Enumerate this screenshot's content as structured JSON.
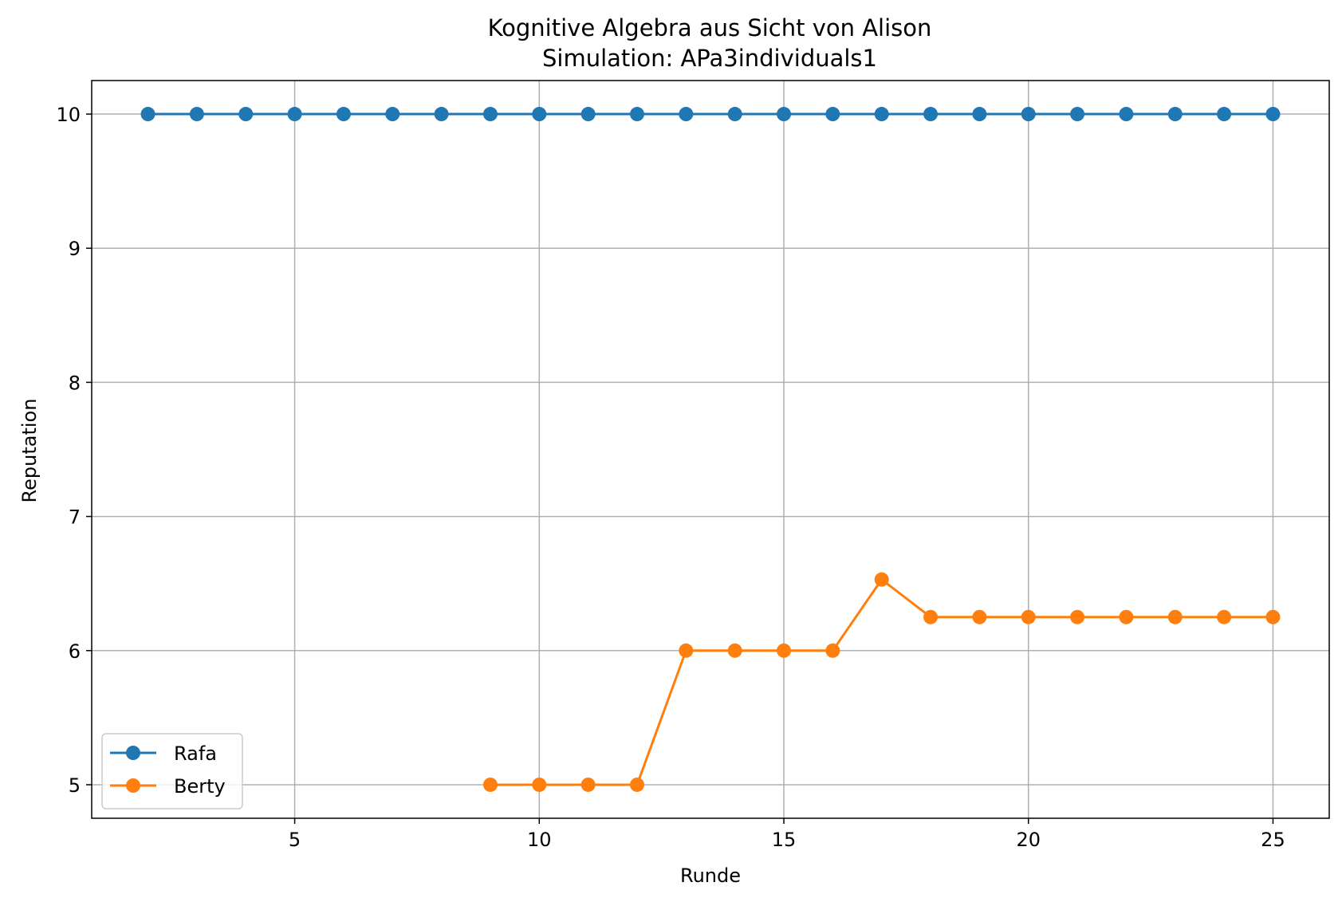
{
  "chart_data": {
    "type": "line",
    "title": "Kognitive Algebra aus Sicht von Alison",
    "subtitle": "Simulation: APa3individuals1",
    "xlabel": "Runde",
    "ylabel": "Reputation",
    "xlim": [
      0.85,
      26.15
    ],
    "ylim": [
      4.75,
      10.25
    ],
    "xticks": [
      5,
      10,
      15,
      20,
      25
    ],
    "yticks": [
      5,
      6,
      7,
      8,
      9,
      10
    ],
    "grid": true,
    "legend_position": "lower left",
    "series": [
      {
        "name": "Rafa",
        "color": "#1f77b4",
        "marker": "circle",
        "x": [
          2,
          3,
          4,
          5,
          6,
          7,
          8,
          9,
          10,
          11,
          12,
          13,
          14,
          15,
          16,
          17,
          18,
          19,
          20,
          21,
          22,
          23,
          24,
          25
        ],
        "y": [
          10,
          10,
          10,
          10,
          10,
          10,
          10,
          10,
          10,
          10,
          10,
          10,
          10,
          10,
          10,
          10,
          10,
          10,
          10,
          10,
          10,
          10,
          10,
          10
        ]
      },
      {
        "name": "Berty",
        "color": "#ff7f0e",
        "marker": "circle",
        "x": [
          9,
          10,
          11,
          12,
          13,
          14,
          15,
          16,
          17,
          18,
          19,
          20,
          21,
          22,
          23,
          24,
          25
        ],
        "y": [
          5,
          5,
          5,
          5,
          6,
          6,
          6,
          6,
          6.53,
          6.25,
          6.25,
          6.25,
          6.25,
          6.25,
          6.25,
          6.25,
          6.25
        ]
      }
    ]
  }
}
